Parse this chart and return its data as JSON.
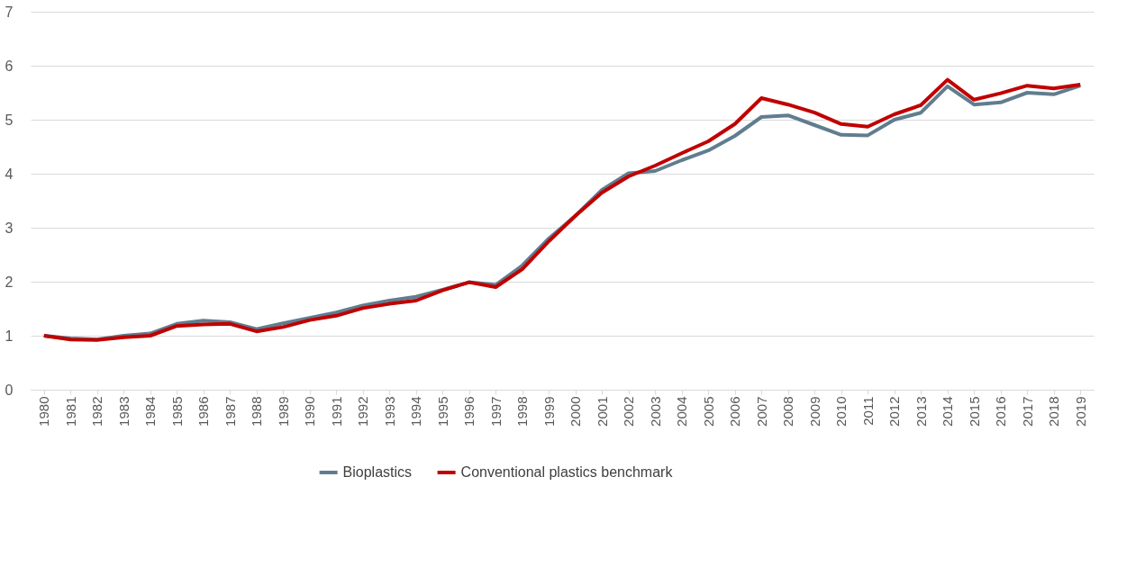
{
  "chart_data": {
    "type": "line",
    "categories": [
      "1980",
      "1981",
      "1982",
      "1983",
      "1984",
      "1985",
      "1986",
      "1987",
      "1988",
      "1989",
      "1990",
      "1991",
      "1992",
      "1993",
      "1994",
      "1995",
      "1996",
      "1997",
      "1998",
      "1999",
      "2000",
      "2001",
      "2002",
      "2003",
      "2004",
      "2005",
      "2006",
      "2007",
      "2008",
      "2009",
      "2010",
      "2011",
      "2012",
      "2013",
      "2014",
      "2015",
      "2016",
      "2017",
      "2018",
      "2019"
    ],
    "series": [
      {
        "name": "Bioplastics",
        "color": "#607d8f",
        "values": [
          1.0,
          0.95,
          0.93,
          1.0,
          1.04,
          1.22,
          1.28,
          1.25,
          1.12,
          1.23,
          1.33,
          1.43,
          1.56,
          1.65,
          1.72,
          1.85,
          1.99,
          1.94,
          2.3,
          2.8,
          3.22,
          3.7,
          4.01,
          4.05,
          4.25,
          4.43,
          4.7,
          5.05,
          5.08,
          4.9,
          4.72,
          4.71,
          5.0,
          5.13,
          5.62,
          5.28,
          5.32,
          5.5,
          5.47,
          5.63
        ]
      },
      {
        "name": "Conventional plastics benchmark",
        "color": "#c00000",
        "values": [
          1.0,
          0.93,
          0.92,
          0.97,
          1.0,
          1.18,
          1.21,
          1.22,
          1.08,
          1.16,
          1.29,
          1.37,
          1.51,
          1.59,
          1.65,
          1.84,
          1.99,
          1.9,
          2.23,
          2.75,
          3.22,
          3.65,
          3.95,
          4.15,
          4.38,
          4.6,
          4.92,
          5.4,
          5.28,
          5.13,
          4.92,
          4.87,
          5.1,
          5.27,
          5.74,
          5.37,
          5.49,
          5.63,
          5.58,
          5.65
        ]
      }
    ],
    "ylim": [
      0,
      7
    ],
    "yticks": [
      0,
      1,
      2,
      3,
      4,
      5,
      6,
      7
    ],
    "grid": "y",
    "legend": "bottom",
    "marker": "none",
    "line_style": "solid"
  }
}
